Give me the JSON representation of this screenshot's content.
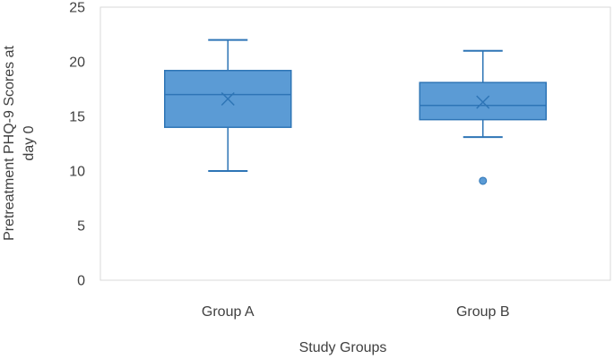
{
  "chart_data": {
    "type": "boxplot",
    "xlabel": "Study Groups",
    "ylabel_lines": [
      "Pretreatment PHQ-9 Scores at",
      "day 0"
    ],
    "ylim": [
      0,
      25
    ],
    "yticks": [
      0,
      5,
      10,
      15,
      20,
      25
    ],
    "grid": false,
    "categories": [
      "Group A",
      "Group B"
    ],
    "series": [
      {
        "name": "Group A",
        "min": 10,
        "q1": 14,
        "median": 17,
        "q3": 19.2,
        "max": 22,
        "mean": 16.6,
        "outliers": []
      },
      {
        "name": "Group B",
        "min": 13.1,
        "q1": 14.7,
        "median": 16,
        "q3": 18.1,
        "max": 21,
        "mean": 16.3,
        "outliers": [
          9.1
        ]
      }
    ],
    "colors": {
      "box_fill": "#5b9bd5",
      "box_stroke": "#2e75b6",
      "frame": "#d9d9d9",
      "text": "#404040"
    }
  }
}
